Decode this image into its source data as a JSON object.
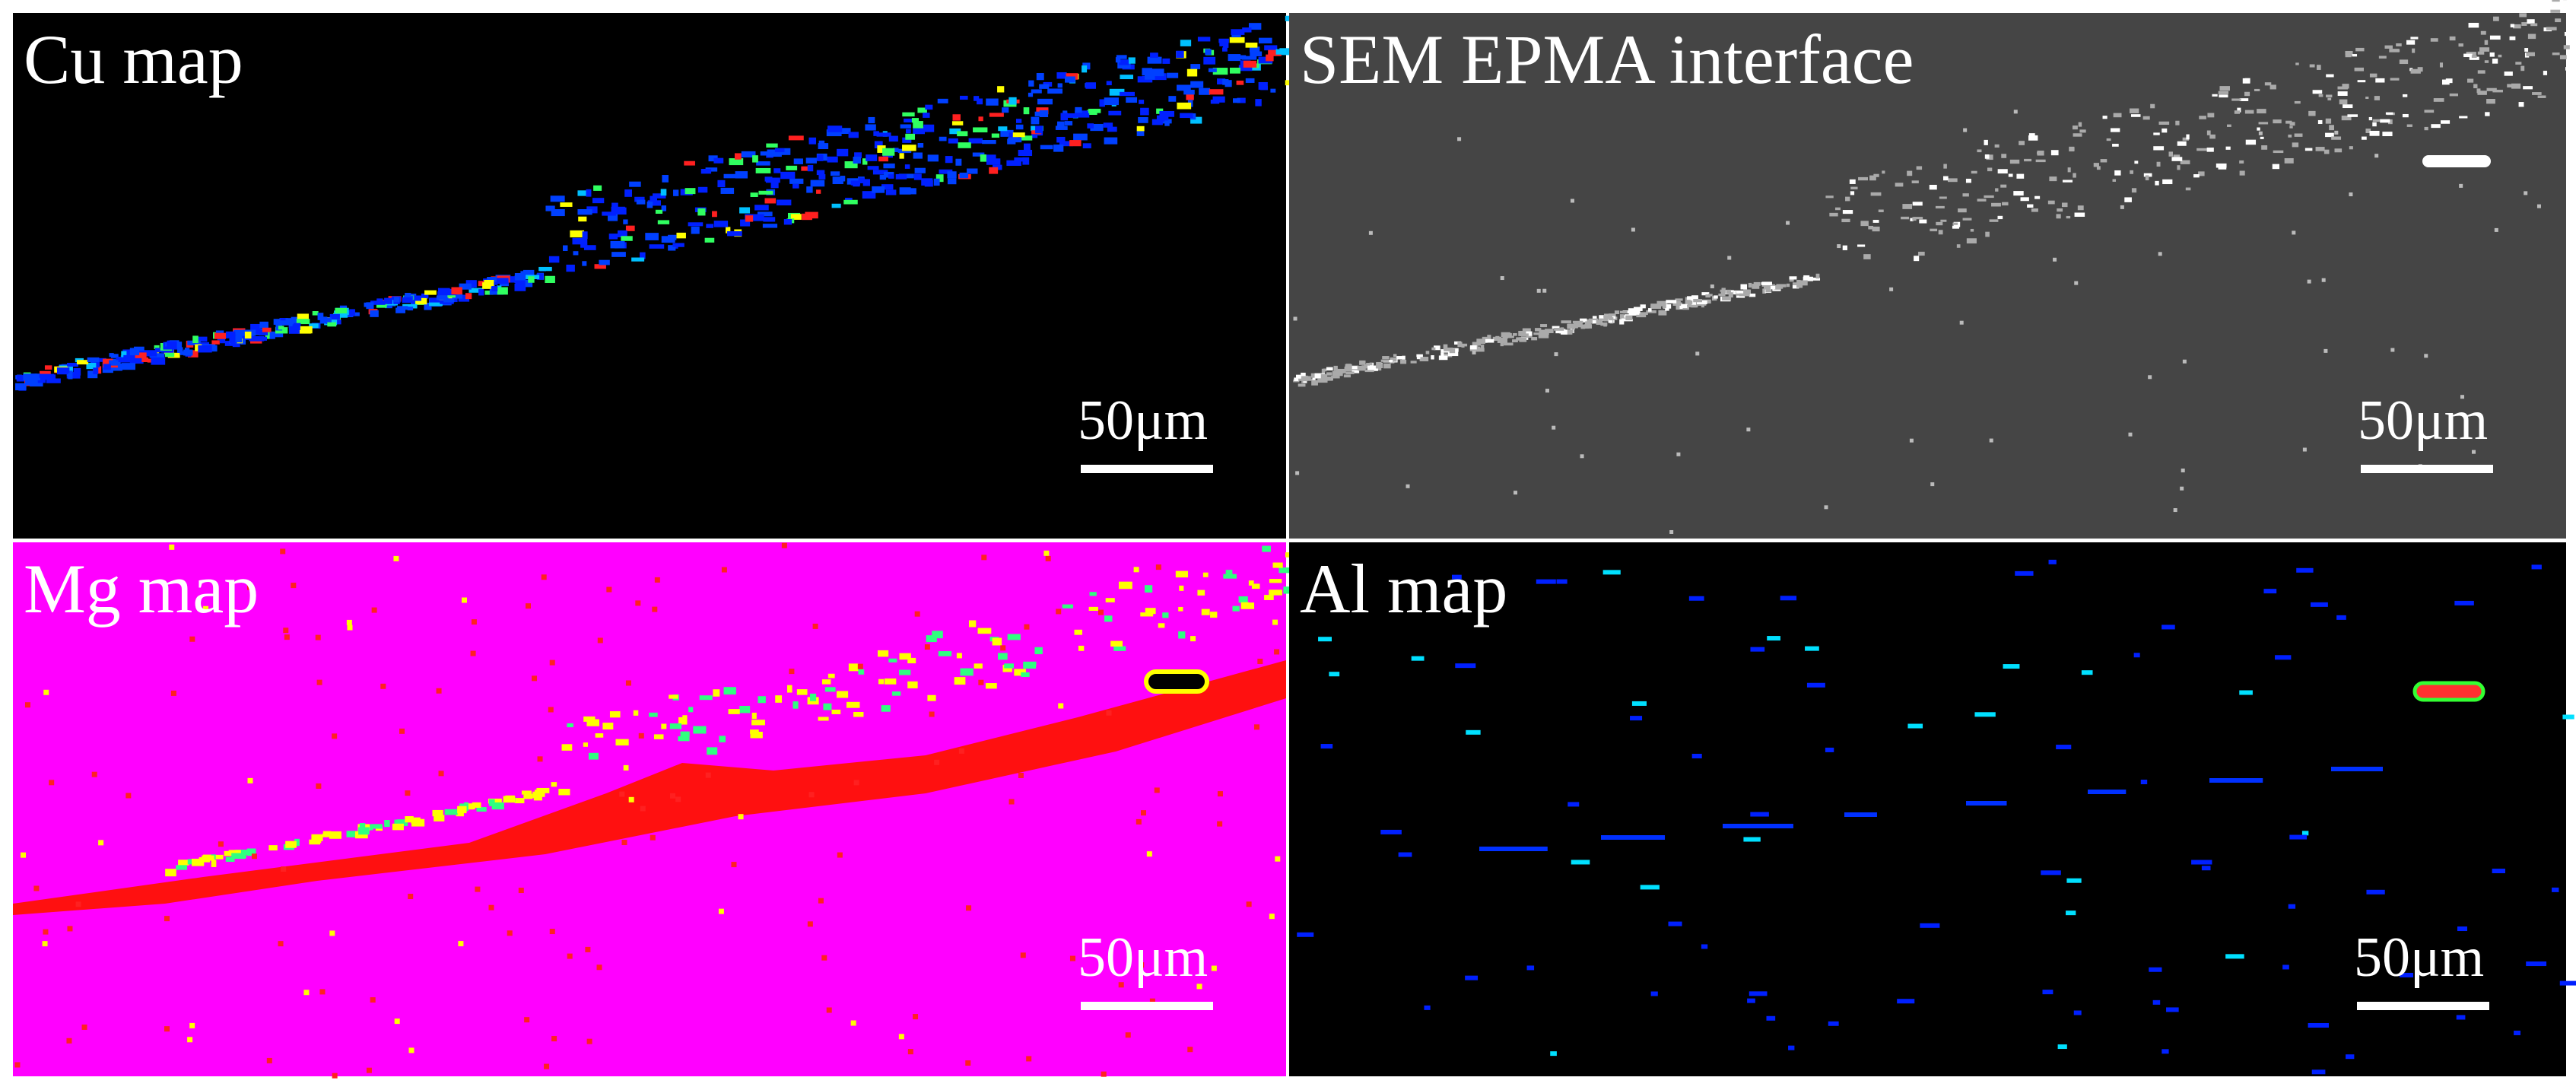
{
  "panels": [
    {
      "label": "Cu map",
      "scale_bar": "50μm"
    },
    {
      "label": "SEM EPMA interface",
      "scale_bar": "50μm"
    },
    {
      "label": "Mg map",
      "scale_bar": "50μm"
    },
    {
      "label": "Al map",
      "scale_bar": "50μm"
    }
  ]
}
